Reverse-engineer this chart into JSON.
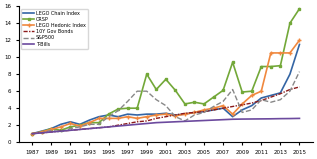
{
  "years": [
    1987,
    1988,
    1989,
    1990,
    1991,
    1992,
    1993,
    1994,
    1995,
    1996,
    1997,
    1998,
    1999,
    2000,
    2001,
    2002,
    2003,
    2004,
    2005,
    2006,
    2007,
    2008,
    2009,
    2010,
    2011,
    2012,
    2013,
    2014,
    2015
  ],
  "lego_chain": [
    1.0,
    1.3,
    1.6,
    2.1,
    2.4,
    2.1,
    2.6,
    3.0,
    3.2,
    3.0,
    3.3,
    3.2,
    3.3,
    3.3,
    3.4,
    3.2,
    3.3,
    3.5,
    3.6,
    3.8,
    4.0,
    3.0,
    3.8,
    4.3,
    5.2,
    5.5,
    5.8,
    8.0,
    11.5
  ],
  "crsp": [
    1.0,
    1.2,
    1.6,
    1.4,
    1.8,
    2.0,
    2.3,
    2.3,
    3.3,
    3.9,
    4.0,
    4.0,
    8.0,
    6.2,
    7.4,
    6.1,
    4.5,
    4.7,
    4.5,
    5.3,
    6.1,
    9.4,
    5.9,
    6.0,
    8.9,
    8.9,
    9.0,
    14.0,
    15.7
  ],
  "lego_hedonic": [
    1.0,
    1.2,
    1.5,
    1.8,
    2.2,
    1.9,
    2.3,
    2.8,
    2.8,
    2.8,
    3.0,
    2.8,
    3.0,
    3.2,
    3.3,
    3.1,
    3.3,
    3.5,
    3.8,
    4.0,
    4.3,
    3.3,
    4.5,
    5.5,
    6.0,
    10.5,
    10.5,
    10.5,
    12.0
  ],
  "gov_bonds": [
    1.0,
    1.1,
    1.2,
    1.3,
    1.4,
    1.5,
    1.6,
    1.7,
    1.8,
    2.0,
    2.2,
    2.4,
    2.5,
    2.8,
    3.0,
    3.2,
    3.4,
    3.5,
    3.6,
    3.8,
    4.0,
    4.2,
    4.4,
    4.6,
    4.9,
    5.3,
    5.7,
    6.2,
    6.5
  ],
  "sp500": [
    1.0,
    1.1,
    1.4,
    1.2,
    1.6,
    1.8,
    2.1,
    2.1,
    3.0,
    3.7,
    4.8,
    6.0,
    6.0,
    5.0,
    4.3,
    3.0,
    2.5,
    3.2,
    3.5,
    4.2,
    4.8,
    6.2,
    3.5,
    3.8,
    5.0,
    4.7,
    5.0,
    6.0,
    8.3
  ],
  "tbills": [
    1.0,
    1.1,
    1.2,
    1.3,
    1.4,
    1.5,
    1.6,
    1.7,
    1.8,
    1.9,
    2.0,
    2.1,
    2.2,
    2.3,
    2.35,
    2.4,
    2.45,
    2.5,
    2.55,
    2.6,
    2.65,
    2.7,
    2.72,
    2.73,
    2.74,
    2.75,
    2.77,
    2.78,
    2.8
  ],
  "colors": {
    "lego_chain": "#3465a4",
    "crsp": "#73a839",
    "lego_hedonic": "#f0883e",
    "gov_bonds": "#8b1a1a",
    "sp500": "#888888",
    "tbills": "#6c4a9e"
  },
  "ylim": [
    0,
    16
  ],
  "yticks": [
    0,
    2,
    4,
    6,
    8,
    10,
    12,
    14,
    16
  ],
  "xtick_years": [
    1987,
    1989,
    1991,
    1993,
    1995,
    1997,
    1999,
    2001,
    2003,
    2005,
    2007,
    2009,
    2011,
    2013,
    2015
  ],
  "legend_labels": [
    "LEGO Chain Index",
    "CRSP",
    "LEGO Hedonic Index",
    "10Y Gov Bonds",
    "S&P500",
    "T-Bills"
  ]
}
